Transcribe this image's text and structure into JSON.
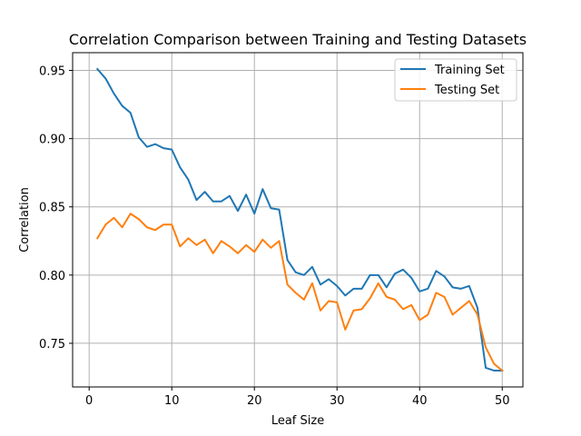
{
  "chart_data": {
    "type": "line",
    "title": "Correlation Comparison between Training and Testing Datasets",
    "xlabel": "Leaf Size",
    "ylabel": "Correlation",
    "xlim": [
      -2,
      52.5
    ],
    "ylim": [
      0.718,
      0.963
    ],
    "xticks": [
      0,
      10,
      20,
      30,
      40,
      50
    ],
    "xtick_labels": [
      "0",
      "10",
      "20",
      "30",
      "40",
      "50"
    ],
    "yticks": [
      0.75,
      0.8,
      0.85,
      0.9,
      0.95
    ],
    "ytick_labels": [
      "0.75",
      "0.80",
      "0.85",
      "0.90",
      "0.95"
    ],
    "grid": true,
    "legend_position": "top-right",
    "x": [
      1,
      2,
      3,
      4,
      5,
      6,
      7,
      8,
      9,
      10,
      11,
      12,
      13,
      14,
      15,
      16,
      17,
      18,
      19,
      20,
      21,
      22,
      23,
      24,
      25,
      26,
      27,
      28,
      29,
      30,
      31,
      32,
      33,
      34,
      35,
      36,
      37,
      38,
      39,
      40,
      41,
      42,
      43,
      44,
      45,
      46,
      47,
      48,
      49,
      50
    ],
    "series": [
      {
        "name": "Training Set",
        "color": "#1f77b4",
        "values": [
          0.951,
          0.944,
          0.933,
          0.924,
          0.919,
          0.901,
          0.894,
          0.896,
          0.893,
          0.892,
          0.879,
          0.87,
          0.855,
          0.861,
          0.854,
          0.854,
          0.858,
          0.847,
          0.859,
          0.845,
          0.863,
          0.849,
          0.848,
          0.811,
          0.802,
          0.8,
          0.806,
          0.793,
          0.797,
          0.792,
          0.785,
          0.79,
          0.79,
          0.8,
          0.8,
          0.791,
          0.801,
          0.804,
          0.798,
          0.788,
          0.79,
          0.803,
          0.799,
          0.791,
          0.79,
          0.792,
          0.776,
          0.732,
          0.73,
          0.73
        ]
      },
      {
        "name": "Testing Set",
        "color": "#ff7f0e",
        "values": [
          0.827,
          0.837,
          0.842,
          0.835,
          0.845,
          0.841,
          0.835,
          0.833,
          0.837,
          0.837,
          0.821,
          0.827,
          0.822,
          0.826,
          0.816,
          0.825,
          0.821,
          0.816,
          0.822,
          0.817,
          0.826,
          0.82,
          0.825,
          0.793,
          0.787,
          0.782,
          0.794,
          0.774,
          0.781,
          0.78,
          0.76,
          0.774,
          0.775,
          0.783,
          0.794,
          0.784,
          0.782,
          0.775,
          0.778,
          0.767,
          0.771,
          0.787,
          0.784,
          0.771,
          0.776,
          0.781,
          0.771,
          0.747,
          0.735,
          0.73
        ]
      }
    ]
  }
}
